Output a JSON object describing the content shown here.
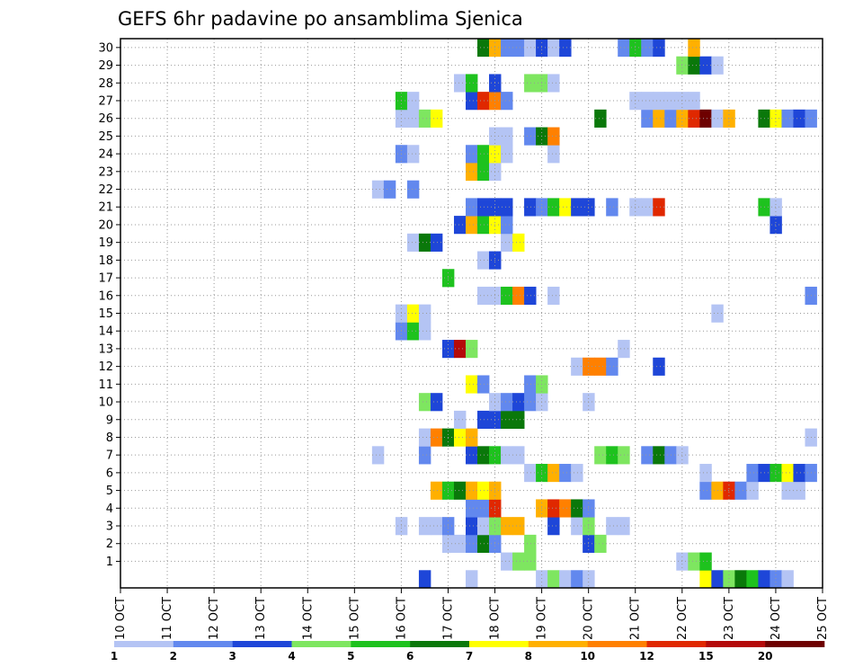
{
  "chart_data": {
    "type": "heatmap",
    "title": "GEFS 6hr padavine po ansamblima Sjenica",
    "x_tick_labels": [
      "10 OCT",
      "11 OCT",
      "12 OCT",
      "13 OCT",
      "14 OCT",
      "15 OCT",
      "16 OCT",
      "17 OCT",
      "18 OCT",
      "19 OCT",
      "20 OCT",
      "21 OCT",
      "22 OCT",
      "23 OCT",
      "24 OCT",
      "25 OCT"
    ],
    "x_range_days": [
      10,
      25
    ],
    "time_step_hours": 6,
    "y_tick_labels": [
      "1",
      "2",
      "3",
      "4",
      "5",
      "6",
      "7",
      "8",
      "9",
      "10",
      "11",
      "12",
      "13",
      "14",
      "15",
      "16",
      "17",
      "18",
      "19",
      "20",
      "21",
      "22",
      "23",
      "24",
      "25",
      "26",
      "27",
      "28",
      "29",
      "30"
    ],
    "y_range": [
      0,
      30
    ],
    "grid": true,
    "colorbar": {
      "levels": [
        "1",
        "2",
        "3",
        "4",
        "5",
        "6",
        "7",
        "8",
        "10",
        "12",
        "15",
        "20"
      ],
      "colors": [
        "#b4c4f4",
        "#6288ee",
        "#1e46d8",
        "#7ee660",
        "#1ec21e",
        "#0a780a",
        "#ffff00",
        "#ffb000",
        "#ff8000",
        "#e02800",
        "#b40a0a",
        "#6e0000"
      ]
    },
    "cells": [
      {
        "m": 0,
        "d": 16.5,
        "c": 3
      },
      {
        "m": 0,
        "d": 17.5,
        "c": 1
      },
      {
        "m": 0,
        "d": 19.0,
        "c": 1
      },
      {
        "m": 0,
        "d": 19.25,
        "c": 4
      },
      {
        "m": 0,
        "d": 19.5,
        "c": 1
      },
      {
        "m": 0,
        "d": 19.75,
        "c": 2
      },
      {
        "m": 0,
        "d": 20.0,
        "c": 1
      },
      {
        "m": 0,
        "d": 22.5,
        "c": 7
      },
      {
        "m": 0,
        "d": 22.75,
        "c": 3
      },
      {
        "m": 0,
        "d": 23.0,
        "c": 4
      },
      {
        "m": 0,
        "d": 23.25,
        "c": 6
      },
      {
        "m": 0,
        "d": 23.5,
        "c": 5
      },
      {
        "m": 0,
        "d": 23.75,
        "c": 3
      },
      {
        "m": 0,
        "d": 24.0,
        "c": 2
      },
      {
        "m": 0,
        "d": 24.25,
        "c": 1
      },
      {
        "m": 1,
        "d": 18.25,
        "c": 1
      },
      {
        "m": 1,
        "d": 18.5,
        "c": 4
      },
      {
        "m": 1,
        "d": 18.75,
        "c": 4
      },
      {
        "m": 1,
        "d": 22.0,
        "c": 1
      },
      {
        "m": 1,
        "d": 22.25,
        "c": 4
      },
      {
        "m": 1,
        "d": 22.5,
        "c": 5
      },
      {
        "m": 2,
        "d": 17.0,
        "c": 1
      },
      {
        "m": 2,
        "d": 17.25,
        "c": 1
      },
      {
        "m": 2,
        "d": 17.5,
        "c": 2
      },
      {
        "m": 2,
        "d": 17.75,
        "c": 6
      },
      {
        "m": 2,
        "d": 18.0,
        "c": 2
      },
      {
        "m": 2,
        "d": 18.75,
        "c": 4
      },
      {
        "m": 2,
        "d": 20.0,
        "c": 3
      },
      {
        "m": 2,
        "d": 20.25,
        "c": 4
      },
      {
        "m": 3,
        "d": 16.0,
        "c": 1
      },
      {
        "m": 3,
        "d": 16.5,
        "c": 1
      },
      {
        "m": 3,
        "d": 16.75,
        "c": 1
      },
      {
        "m": 3,
        "d": 17.0,
        "c": 2
      },
      {
        "m": 3,
        "d": 17.5,
        "c": 3
      },
      {
        "m": 3,
        "d": 17.75,
        "c": 1
      },
      {
        "m": 3,
        "d": 18.0,
        "c": 4
      },
      {
        "m": 3,
        "d": 18.25,
        "c": 8
      },
      {
        "m": 3,
        "d": 18.5,
        "c": 8
      },
      {
        "m": 3,
        "d": 19.25,
        "c": 3
      },
      {
        "m": 3,
        "d": 19.75,
        "c": 1
      },
      {
        "m": 3,
        "d": 20.0,
        "c": 4
      },
      {
        "m": 3,
        "d": 20.5,
        "c": 1
      },
      {
        "m": 3,
        "d": 20.75,
        "c": 1
      },
      {
        "m": 4,
        "d": 17.5,
        "c": 2
      },
      {
        "m": 4,
        "d": 17.75,
        "c": 2
      },
      {
        "m": 4,
        "d": 18.0,
        "c": 10
      },
      {
        "m": 4,
        "d": 19.0,
        "c": 8
      },
      {
        "m": 4,
        "d": 19.25,
        "c": 10
      },
      {
        "m": 4,
        "d": 19.5,
        "c": 9
      },
      {
        "m": 4,
        "d": 19.75,
        "c": 6
      },
      {
        "m": 4,
        "d": 20.0,
        "c": 2
      },
      {
        "m": 5,
        "d": 16.75,
        "c": 8
      },
      {
        "m": 5,
        "d": 17.0,
        "c": 5
      },
      {
        "m": 5,
        "d": 17.25,
        "c": 6
      },
      {
        "m": 5,
        "d": 17.5,
        "c": 8
      },
      {
        "m": 5,
        "d": 17.75,
        "c": 7
      },
      {
        "m": 5,
        "d": 18.0,
        "c": 8
      },
      {
        "m": 5,
        "d": 22.5,
        "c": 2
      },
      {
        "m": 5,
        "d": 22.75,
        "c": 8
      },
      {
        "m": 5,
        "d": 23.0,
        "c": 10
      },
      {
        "m": 5,
        "d": 23.25,
        "c": 2
      },
      {
        "m": 5,
        "d": 23.5,
        "c": 1
      },
      {
        "m": 5,
        "d": 24.25,
        "c": 1
      },
      {
        "m": 5,
        "d": 24.5,
        "c": 1
      },
      {
        "m": 6,
        "d": 18.75,
        "c": 1
      },
      {
        "m": 6,
        "d": 19.0,
        "c": 5
      },
      {
        "m": 6,
        "d": 19.25,
        "c": 8
      },
      {
        "m": 6,
        "d": 19.5,
        "c": 2
      },
      {
        "m": 6,
        "d": 19.75,
        "c": 1
      },
      {
        "m": 6,
        "d": 22.5,
        "c": 1
      },
      {
        "m": 6,
        "d": 23.5,
        "c": 2
      },
      {
        "m": 6,
        "d": 23.75,
        "c": 3
      },
      {
        "m": 6,
        "d": 24.0,
        "c": 5
      },
      {
        "m": 6,
        "d": 24.25,
        "c": 7
      },
      {
        "m": 6,
        "d": 24.5,
        "c": 3
      },
      {
        "m": 6,
        "d": 24.75,
        "c": 2
      },
      {
        "m": 7,
        "d": 15.5,
        "c": 1
      },
      {
        "m": 7,
        "d": 16.5,
        "c": 2
      },
      {
        "m": 7,
        "d": 17.5,
        "c": 3
      },
      {
        "m": 7,
        "d": 17.75,
        "c": 6
      },
      {
        "m": 7,
        "d": 18.0,
        "c": 5
      },
      {
        "m": 7,
        "d": 18.25,
        "c": 1
      },
      {
        "m": 7,
        "d": 18.5,
        "c": 1
      },
      {
        "m": 7,
        "d": 20.25,
        "c": 4
      },
      {
        "m": 7,
        "d": 20.5,
        "c": 5
      },
      {
        "m": 7,
        "d": 20.75,
        "c": 4
      },
      {
        "m": 7,
        "d": 21.25,
        "c": 2
      },
      {
        "m": 7,
        "d": 21.5,
        "c": 6
      },
      {
        "m": 7,
        "d": 21.75,
        "c": 2
      },
      {
        "m": 7,
        "d": 22.0,
        "c": 1
      },
      {
        "m": 8,
        "d": 16.5,
        "c": 1
      },
      {
        "m": 8,
        "d": 16.75,
        "c": 9
      },
      {
        "m": 8,
        "d": 17.0,
        "c": 6
      },
      {
        "m": 8,
        "d": 17.25,
        "c": 7
      },
      {
        "m": 8,
        "d": 17.5,
        "c": 8
      },
      {
        "m": 8,
        "d": 24.75,
        "c": 1
      },
      {
        "m": 9,
        "d": 17.25,
        "c": 1
      },
      {
        "m": 9,
        "d": 17.75,
        "c": 3
      },
      {
        "m": 9,
        "d": 18.0,
        "c": 3
      },
      {
        "m": 9,
        "d": 18.25,
        "c": 6
      },
      {
        "m": 9,
        "d": 18.5,
        "c": 6
      },
      {
        "m": 10,
        "d": 16.5,
        "c": 4
      },
      {
        "m": 10,
        "d": 16.75,
        "c": 3
      },
      {
        "m": 10,
        "d": 18.0,
        "c": 1
      },
      {
        "m": 10,
        "d": 18.25,
        "c": 2
      },
      {
        "m": 10,
        "d": 18.5,
        "c": 3
      },
      {
        "m": 10,
        "d": 18.75,
        "c": 2
      },
      {
        "m": 10,
        "d": 19.0,
        "c": 1
      },
      {
        "m": 10,
        "d": 20.0,
        "c": 1
      },
      {
        "m": 11,
        "d": 17.5,
        "c": 7
      },
      {
        "m": 11,
        "d": 17.75,
        "c": 2
      },
      {
        "m": 11,
        "d": 18.75,
        "c": 2
      },
      {
        "m": 11,
        "d": 19.0,
        "c": 4
      },
      {
        "m": 12,
        "d": 19.75,
        "c": 1
      },
      {
        "m": 12,
        "d": 20.0,
        "c": 9
      },
      {
        "m": 12,
        "d": 20.25,
        "c": 9
      },
      {
        "m": 12,
        "d": 20.5,
        "c": 2
      },
      {
        "m": 12,
        "d": 21.5,
        "c": 3
      },
      {
        "m": 13,
        "d": 17.0,
        "c": 3
      },
      {
        "m": 13,
        "d": 17.25,
        "c": 11
      },
      {
        "m": 13,
        "d": 17.5,
        "c": 4
      },
      {
        "m": 13,
        "d": 20.75,
        "c": 1
      },
      {
        "m": 14,
        "d": 16.0,
        "c": 2
      },
      {
        "m": 14,
        "d": 16.25,
        "c": 5
      },
      {
        "m": 14,
        "d": 16.5,
        "c": 1
      },
      {
        "m": 15,
        "d": 16.0,
        "c": 1
      },
      {
        "m": 15,
        "d": 16.25,
        "c": 7
      },
      {
        "m": 15,
        "d": 16.5,
        "c": 1
      },
      {
        "m": 15,
        "d": 22.75,
        "c": 1
      },
      {
        "m": 16,
        "d": 17.75,
        "c": 1
      },
      {
        "m": 16,
        "d": 18.0,
        "c": 1
      },
      {
        "m": 16,
        "d": 18.25,
        "c": 5
      },
      {
        "m": 16,
        "d": 18.5,
        "c": 9
      },
      {
        "m": 16,
        "d": 18.75,
        "c": 3
      },
      {
        "m": 16,
        "d": 19.25,
        "c": 1
      },
      {
        "m": 16,
        "d": 24.75,
        "c": 2
      },
      {
        "m": 17,
        "d": 17.0,
        "c": 5
      },
      {
        "m": 18,
        "d": 17.75,
        "c": 1
      },
      {
        "m": 18,
        "d": 18.0,
        "c": 3
      },
      {
        "m": 19,
        "d": 16.25,
        "c": 1
      },
      {
        "m": 19,
        "d": 16.5,
        "c": 6
      },
      {
        "m": 19,
        "d": 16.75,
        "c": 3
      },
      {
        "m": 19,
        "d": 18.25,
        "c": 1
      },
      {
        "m": 19,
        "d": 18.5,
        "c": 7
      },
      {
        "m": 20,
        "d": 17.25,
        "c": 3
      },
      {
        "m": 20,
        "d": 17.5,
        "c": 8
      },
      {
        "m": 20,
        "d": 17.75,
        "c": 5
      },
      {
        "m": 20,
        "d": 18.0,
        "c": 7
      },
      {
        "m": 20,
        "d": 18.25,
        "c": 2
      },
      {
        "m": 20,
        "d": 24.0,
        "c": 3
      },
      {
        "m": 21,
        "d": 17.5,
        "c": 2
      },
      {
        "m": 21,
        "d": 17.75,
        "c": 3
      },
      {
        "m": 21,
        "d": 18.0,
        "c": 3
      },
      {
        "m": 21,
        "d": 18.25,
        "c": 3
      },
      {
        "m": 21,
        "d": 18.75,
        "c": 3
      },
      {
        "m": 21,
        "d": 19.0,
        "c": 2
      },
      {
        "m": 21,
        "d": 19.25,
        "c": 5
      },
      {
        "m": 21,
        "d": 19.5,
        "c": 7
      },
      {
        "m": 21,
        "d": 19.75,
        "c": 3
      },
      {
        "m": 21,
        "d": 20.0,
        "c": 3
      },
      {
        "m": 21,
        "d": 20.5,
        "c": 2
      },
      {
        "m": 21,
        "d": 21.0,
        "c": 1
      },
      {
        "m": 21,
        "d": 21.25,
        "c": 1
      },
      {
        "m": 21,
        "d": 21.5,
        "c": 10
      },
      {
        "m": 21,
        "d": 23.75,
        "c": 5
      },
      {
        "m": 21,
        "d": 24.0,
        "c": 1
      },
      {
        "m": 22,
        "d": 15.5,
        "c": 1
      },
      {
        "m": 22,
        "d": 15.75,
        "c": 2
      },
      {
        "m": 22,
        "d": 16.25,
        "c": 2
      },
      {
        "m": 23,
        "d": 17.5,
        "c": 8
      },
      {
        "m": 23,
        "d": 17.75,
        "c": 5
      },
      {
        "m": 23,
        "d": 18.0,
        "c": 1
      },
      {
        "m": 24,
        "d": 16.0,
        "c": 2
      },
      {
        "m": 24,
        "d": 16.25,
        "c": 1
      },
      {
        "m": 24,
        "d": 17.5,
        "c": 2
      },
      {
        "m": 24,
        "d": 17.75,
        "c": 5
      },
      {
        "m": 24,
        "d": 18.0,
        "c": 7
      },
      {
        "m": 24,
        "d": 18.25,
        "c": 1
      },
      {
        "m": 24,
        "d": 19.25,
        "c": 1
      },
      {
        "m": 25,
        "d": 18.0,
        "c": 1
      },
      {
        "m": 25,
        "d": 18.25,
        "c": 1
      },
      {
        "m": 25,
        "d": 18.75,
        "c": 2
      },
      {
        "m": 25,
        "d": 19.0,
        "c": 6
      },
      {
        "m": 25,
        "d": 19.25,
        "c": 9
      },
      {
        "m": 26,
        "d": 16.0,
        "c": 1
      },
      {
        "m": 26,
        "d": 16.25,
        "c": 1
      },
      {
        "m": 26,
        "d": 16.5,
        "c": 4
      },
      {
        "m": 26,
        "d": 16.75,
        "c": 7
      },
      {
        "m": 26,
        "d": 20.25,
        "c": 6
      },
      {
        "m": 26,
        "d": 21.25,
        "c": 2
      },
      {
        "m": 26,
        "d": 21.5,
        "c": 8
      },
      {
        "m": 26,
        "d": 21.75,
        "c": 2
      },
      {
        "m": 26,
        "d": 22.0,
        "c": 8
      },
      {
        "m": 26,
        "d": 22.25,
        "c": 10
      },
      {
        "m": 26,
        "d": 22.5,
        "c": 12
      },
      {
        "m": 26,
        "d": 22.75,
        "c": 1
      },
      {
        "m": 26,
        "d": 23.0,
        "c": 8
      },
      {
        "m": 26,
        "d": 23.75,
        "c": 6
      },
      {
        "m": 26,
        "d": 24.0,
        "c": 7
      },
      {
        "m": 26,
        "d": 24.25,
        "c": 2
      },
      {
        "m": 26,
        "d": 24.5,
        "c": 3
      },
      {
        "m": 26,
        "d": 24.75,
        "c": 2
      },
      {
        "m": 27,
        "d": 16.0,
        "c": 5
      },
      {
        "m": 27,
        "d": 16.25,
        "c": 1
      },
      {
        "m": 27,
        "d": 17.5,
        "c": 3
      },
      {
        "m": 27,
        "d": 17.75,
        "c": 10
      },
      {
        "m": 27,
        "d": 18.0,
        "c": 9
      },
      {
        "m": 27,
        "d": 18.25,
        "c": 2
      },
      {
        "m": 27,
        "d": 21.0,
        "c": 1
      },
      {
        "m": 27,
        "d": 21.25,
        "c": 1
      },
      {
        "m": 27,
        "d": 21.5,
        "c": 1
      },
      {
        "m": 27,
        "d": 21.75,
        "c": 1
      },
      {
        "m": 27,
        "d": 22.0,
        "c": 1
      },
      {
        "m": 27,
        "d": 22.25,
        "c": 1
      },
      {
        "m": 28,
        "d": 17.25,
        "c": 1
      },
      {
        "m": 28,
        "d": 17.5,
        "c": 5
      },
      {
        "m": 28,
        "d": 18.0,
        "c": 3
      },
      {
        "m": 28,
        "d": 18.75,
        "c": 4
      },
      {
        "m": 28,
        "d": 19.0,
        "c": 4
      },
      {
        "m": 28,
        "d": 19.25,
        "c": 1
      },
      {
        "m": 29,
        "d": 22.0,
        "c": 4
      },
      {
        "m": 29,
        "d": 22.25,
        "c": 6
      },
      {
        "m": 29,
        "d": 22.5,
        "c": 3
      },
      {
        "m": 29,
        "d": 22.75,
        "c": 1
      },
      {
        "m": 30,
        "d": 17.75,
        "c": 6
      },
      {
        "m": 30,
        "d": 18.0,
        "c": 8
      },
      {
        "m": 30,
        "d": 18.25,
        "c": 2
      },
      {
        "m": 30,
        "d": 18.5,
        "c": 2
      },
      {
        "m": 30,
        "d": 18.75,
        "c": 1
      },
      {
        "m": 30,
        "d": 19.0,
        "c": 3
      },
      {
        "m": 30,
        "d": 19.25,
        "c": 1
      },
      {
        "m": 30,
        "d": 19.5,
        "c": 3
      },
      {
        "m": 30,
        "d": 20.75,
        "c": 2
      },
      {
        "m": 30,
        "d": 21.0,
        "c": 5
      },
      {
        "m": 30,
        "d": 21.25,
        "c": 2
      },
      {
        "m": 30,
        "d": 21.5,
        "c": 3
      },
      {
        "m": 30,
        "d": 22.25,
        "c": 8
      }
    ]
  }
}
